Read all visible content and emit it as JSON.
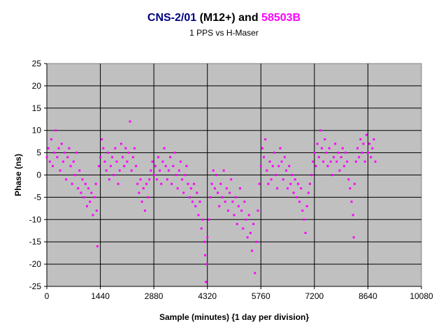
{
  "chart_data": {
    "type": "scatter",
    "title_parts": [
      {
        "text": "CNS-2/01",
        "color": "#000080"
      },
      {
        "text": " (M12+) and ",
        "color": "#000000"
      },
      {
        "text": "58503B",
        "color": "#ff00ff"
      }
    ],
    "subtitle": "1 PPS vs H-Maser",
    "xlabel": "Sample (minutes) {1 day per division}",
    "ylabel": "Phase (ns)",
    "xlim": [
      0,
      10080
    ],
    "ylim": [
      -25,
      25
    ],
    "x_ticks": [
      0,
      1440,
      2880,
      4320,
      5760,
      7200,
      8640,
      10080
    ],
    "y_ticks": [
      25,
      20,
      15,
      10,
      5,
      0,
      -5,
      -10,
      -15,
      -20,
      -25
    ],
    "grid": true,
    "plot_background": "#c0c0c0",
    "marker_color": "#ff00ff",
    "series": [
      {
        "points": [
          [
            0,
            4
          ],
          [
            40,
            6
          ],
          [
            80,
            3
          ],
          [
            120,
            8
          ],
          [
            160,
            2
          ],
          [
            200,
            5
          ],
          [
            240,
            10
          ],
          [
            280,
            4
          ],
          [
            320,
            6
          ],
          [
            360,
            1
          ],
          [
            400,
            7
          ],
          [
            440,
            3
          ],
          [
            480,
            5
          ],
          [
            520,
            -1
          ],
          [
            560,
            4
          ],
          [
            600,
            6
          ],
          [
            640,
            2
          ],
          [
            680,
            -2
          ],
          [
            720,
            3
          ],
          [
            760,
            0
          ],
          [
            800,
            5
          ],
          [
            840,
            -3
          ],
          [
            880,
            1
          ],
          [
            920,
            -4
          ],
          [
            960,
            -1
          ],
          [
            1000,
            -5
          ],
          [
            1040,
            -2
          ],
          [
            1080,
            -7
          ],
          [
            1120,
            -3
          ],
          [
            1160,
            -6
          ],
          [
            1200,
            -4
          ],
          [
            1240,
            -9
          ],
          [
            1280,
            -5
          ],
          [
            1320,
            -2
          ],
          [
            1340,
            -8
          ],
          [
            1360,
            -16
          ],
          [
            1400,
            2
          ],
          [
            1440,
            4
          ],
          [
            1480,
            8
          ],
          [
            1520,
            6
          ],
          [
            1560,
            3
          ],
          [
            1600,
            1
          ],
          [
            1640,
            5
          ],
          [
            1680,
            -1
          ],
          [
            1720,
            2
          ],
          [
            1760,
            4
          ],
          [
            1800,
            0
          ],
          [
            1840,
            6
          ],
          [
            1880,
            3
          ],
          [
            1920,
            -2
          ],
          [
            1960,
            1
          ],
          [
            2000,
            7
          ],
          [
            2040,
            4
          ],
          [
            2080,
            2
          ],
          [
            2120,
            6
          ],
          [
            2160,
            3
          ],
          [
            2200,
            5
          ],
          [
            2240,
            12
          ],
          [
            2280,
            1
          ],
          [
            2320,
            4
          ],
          [
            2360,
            6
          ],
          [
            2400,
            2
          ],
          [
            2440,
            -2
          ],
          [
            2480,
            -4
          ],
          [
            2520,
            -1
          ],
          [
            2560,
            -6
          ],
          [
            2600,
            -3
          ],
          [
            2640,
            -8
          ],
          [
            2680,
            -2
          ],
          [
            2720,
            -5
          ],
          [
            2760,
            -1
          ],
          [
            2800,
            1
          ],
          [
            2840,
            3
          ],
          [
            2880,
            0
          ],
          [
            2920,
            2
          ],
          [
            2960,
            -1
          ],
          [
            3000,
            4
          ],
          [
            3040,
            1
          ],
          [
            3080,
            -2
          ],
          [
            3120,
            3
          ],
          [
            3160,
            6
          ],
          [
            3200,
            2
          ],
          [
            3240,
            -1
          ],
          [
            3280,
            1
          ],
          [
            3320,
            4
          ],
          [
            3360,
            -2
          ],
          [
            3400,
            2
          ],
          [
            3440,
            5
          ],
          [
            3480,
            0
          ],
          [
            3520,
            -3
          ],
          [
            3560,
            1
          ],
          [
            3600,
            3
          ],
          [
            3640,
            -1
          ],
          [
            3680,
            -4
          ],
          [
            3720,
            0
          ],
          [
            3760,
            2
          ],
          [
            3800,
            -2
          ],
          [
            3840,
            -5
          ],
          [
            3880,
            -3
          ],
          [
            3920,
            -6
          ],
          [
            3960,
            -2
          ],
          [
            4000,
            -7
          ],
          [
            4040,
            -4
          ],
          [
            4080,
            -9
          ],
          [
            4120,
            -6
          ],
          [
            4160,
            -12
          ],
          [
            4200,
            -10
          ],
          [
            4240,
            -15
          ],
          [
            4260,
            -18
          ],
          [
            4280,
            -24
          ],
          [
            4300,
            -20
          ],
          [
            4320,
            -14
          ],
          [
            4360,
            -10
          ],
          [
            4400,
            -5
          ],
          [
            4440,
            -2
          ],
          [
            4480,
            1
          ],
          [
            4520,
            -3
          ],
          [
            4560,
            0
          ],
          [
            4600,
            -4
          ],
          [
            4640,
            -7
          ],
          [
            4680,
            -2
          ],
          [
            4720,
            -5
          ],
          [
            4760,
            1
          ],
          [
            4800,
            -6
          ],
          [
            4840,
            -3
          ],
          [
            4880,
            -8
          ],
          [
            4920,
            -4
          ],
          [
            4960,
            -1
          ],
          [
            5000,
            -6
          ],
          [
            5040,
            -9
          ],
          [
            5080,
            -5
          ],
          [
            5120,
            -11
          ],
          [
            5160,
            -7
          ],
          [
            5200,
            -3
          ],
          [
            5240,
            -8
          ],
          [
            5280,
            -12
          ],
          [
            5320,
            -6
          ],
          [
            5360,
            -10
          ],
          [
            5400,
            -14
          ],
          [
            5440,
            -9
          ],
          [
            5480,
            -13
          ],
          [
            5520,
            -17
          ],
          [
            5560,
            -11
          ],
          [
            5600,
            -22
          ],
          [
            5640,
            -15
          ],
          [
            5680,
            -8
          ],
          [
            5720,
            -2
          ],
          [
            5760,
            2
          ],
          [
            5800,
            6
          ],
          [
            5840,
            4
          ],
          [
            5880,
            8
          ],
          [
            5920,
            1
          ],
          [
            5960,
            -2
          ],
          [
            6000,
            3
          ],
          [
            6040,
            -1
          ],
          [
            6080,
            2
          ],
          [
            6120,
            5
          ],
          [
            6160,
            0
          ],
          [
            6200,
            -3
          ],
          [
            6240,
            2
          ],
          [
            6280,
            6
          ],
          [
            6320,
            3
          ],
          [
            6360,
            -1
          ],
          [
            6400,
            4
          ],
          [
            6440,
            1
          ],
          [
            6480,
            -3
          ],
          [
            6520,
            2
          ],
          [
            6560,
            -2
          ],
          [
            6600,
            0
          ],
          [
            6640,
            -4
          ],
          [
            6680,
            -1
          ],
          [
            6720,
            -5
          ],
          [
            6760,
            -2
          ],
          [
            6800,
            -6
          ],
          [
            6840,
            -3
          ],
          [
            6880,
            -8
          ],
          [
            6920,
            -10
          ],
          [
            6960,
            -13
          ],
          [
            7000,
            -7
          ],
          [
            7040,
            -4
          ],
          [
            7080,
            -2
          ],
          [
            7120,
            0
          ],
          [
            7160,
            3
          ],
          [
            7200,
            5
          ],
          [
            7240,
            2
          ],
          [
            7280,
            7
          ],
          [
            7320,
            4
          ],
          [
            7360,
            10
          ],
          [
            7400,
            6
          ],
          [
            7440,
            3
          ],
          [
            7480,
            8
          ],
          [
            7520,
            5
          ],
          [
            7560,
            2
          ],
          [
            7600,
            6
          ],
          [
            7640,
            3
          ],
          [
            7680,
            0
          ],
          [
            7720,
            4
          ],
          [
            7760,
            7
          ],
          [
            7800,
            3
          ],
          [
            7840,
            5
          ],
          [
            7880,
            1
          ],
          [
            7920,
            4
          ],
          [
            7960,
            6
          ],
          [
            8000,
            2
          ],
          [
            8040,
            5
          ],
          [
            8080,
            3
          ],
          [
            8120,
            -1
          ],
          [
            8160,
            -3
          ],
          [
            8200,
            -6
          ],
          [
            8240,
            -9
          ],
          [
            8260,
            -14
          ],
          [
            8280,
            -2
          ],
          [
            8320,
            3
          ],
          [
            8360,
            6
          ],
          [
            8400,
            4
          ],
          [
            8440,
            8
          ],
          [
            8480,
            5
          ],
          [
            8520,
            7
          ],
          [
            8560,
            3
          ],
          [
            8600,
            9
          ],
          [
            8640,
            5
          ],
          [
            8680,
            7
          ],
          [
            8720,
            4
          ],
          [
            8760,
            6
          ],
          [
            8800,
            8
          ],
          [
            8840,
            3
          ]
        ]
      }
    ]
  }
}
